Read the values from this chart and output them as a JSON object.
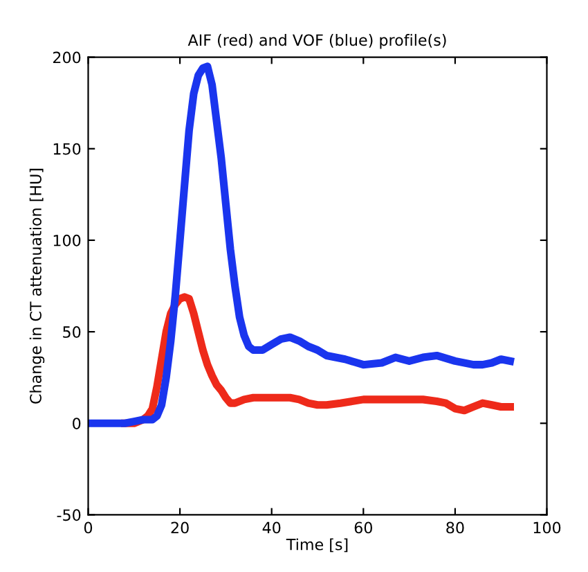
{
  "chart_data": {
    "type": "line",
    "title": "AIF (red) and VOF (blue) profile(s)",
    "xlabel": "Time [s]",
    "ylabel": "Change in CT attenuation [HU]",
    "xlim": [
      0,
      100
    ],
    "ylim": [
      -50,
      200
    ],
    "xticks": [
      0,
      20,
      40,
      60,
      80,
      100
    ],
    "yticks": [
      -50,
      0,
      50,
      100,
      150,
      200
    ],
    "grid": false,
    "marker": "none",
    "line_style": "solid",
    "series": [
      {
        "color": "#ee2a1a",
        "x": [
          8,
          10,
          12,
          13,
          14,
          15,
          16,
          17,
          18,
          19,
          20,
          21,
          22,
          23,
          24,
          25,
          26,
          27,
          28,
          29,
          30,
          31,
          32,
          34,
          36,
          40,
          44,
          46,
          48,
          50,
          52,
          55,
          60,
          65,
          70,
          73,
          76,
          78,
          80,
          82,
          84,
          86,
          88,
          90,
          92
        ],
        "values": [
          0,
          0,
          2,
          4,
          8,
          20,
          35,
          50,
          60,
          65,
          68,
          69,
          68,
          60,
          50,
          40,
          32,
          26,
          21,
          18,
          14,
          11,
          11,
          13,
          14,
          14,
          14,
          13,
          11,
          10,
          10,
          11,
          13,
          13,
          13,
          13,
          12,
          11,
          8,
          7,
          9,
          11,
          10,
          9,
          9
        ]
      },
      {
        "color": "#1a35ee",
        "x": [
          0,
          4,
          8,
          10,
          12,
          14,
          15,
          16,
          17,
          18,
          19,
          20,
          21,
          22,
          23,
          24,
          25,
          26,
          27,
          28,
          29,
          30,
          31,
          32,
          33,
          34,
          35,
          36,
          38,
          40,
          42,
          44,
          46,
          48,
          50,
          52,
          56,
          60,
          64,
          67,
          70,
          73,
          76,
          80,
          84,
          86,
          88,
          90,
          92
        ],
        "values": [
          0,
          0,
          0,
          1,
          2,
          2,
          4,
          10,
          25,
          45,
          70,
          100,
          130,
          160,
          180,
          190,
          194,
          195,
          185,
          165,
          145,
          120,
          95,
          75,
          58,
          48,
          42,
          40,
          40,
          43,
          46,
          47,
          45,
          42,
          40,
          37,
          35,
          32,
          33,
          36,
          34,
          36,
          37,
          34,
          32,
          32,
          33,
          35,
          34
        ]
      }
    ]
  }
}
